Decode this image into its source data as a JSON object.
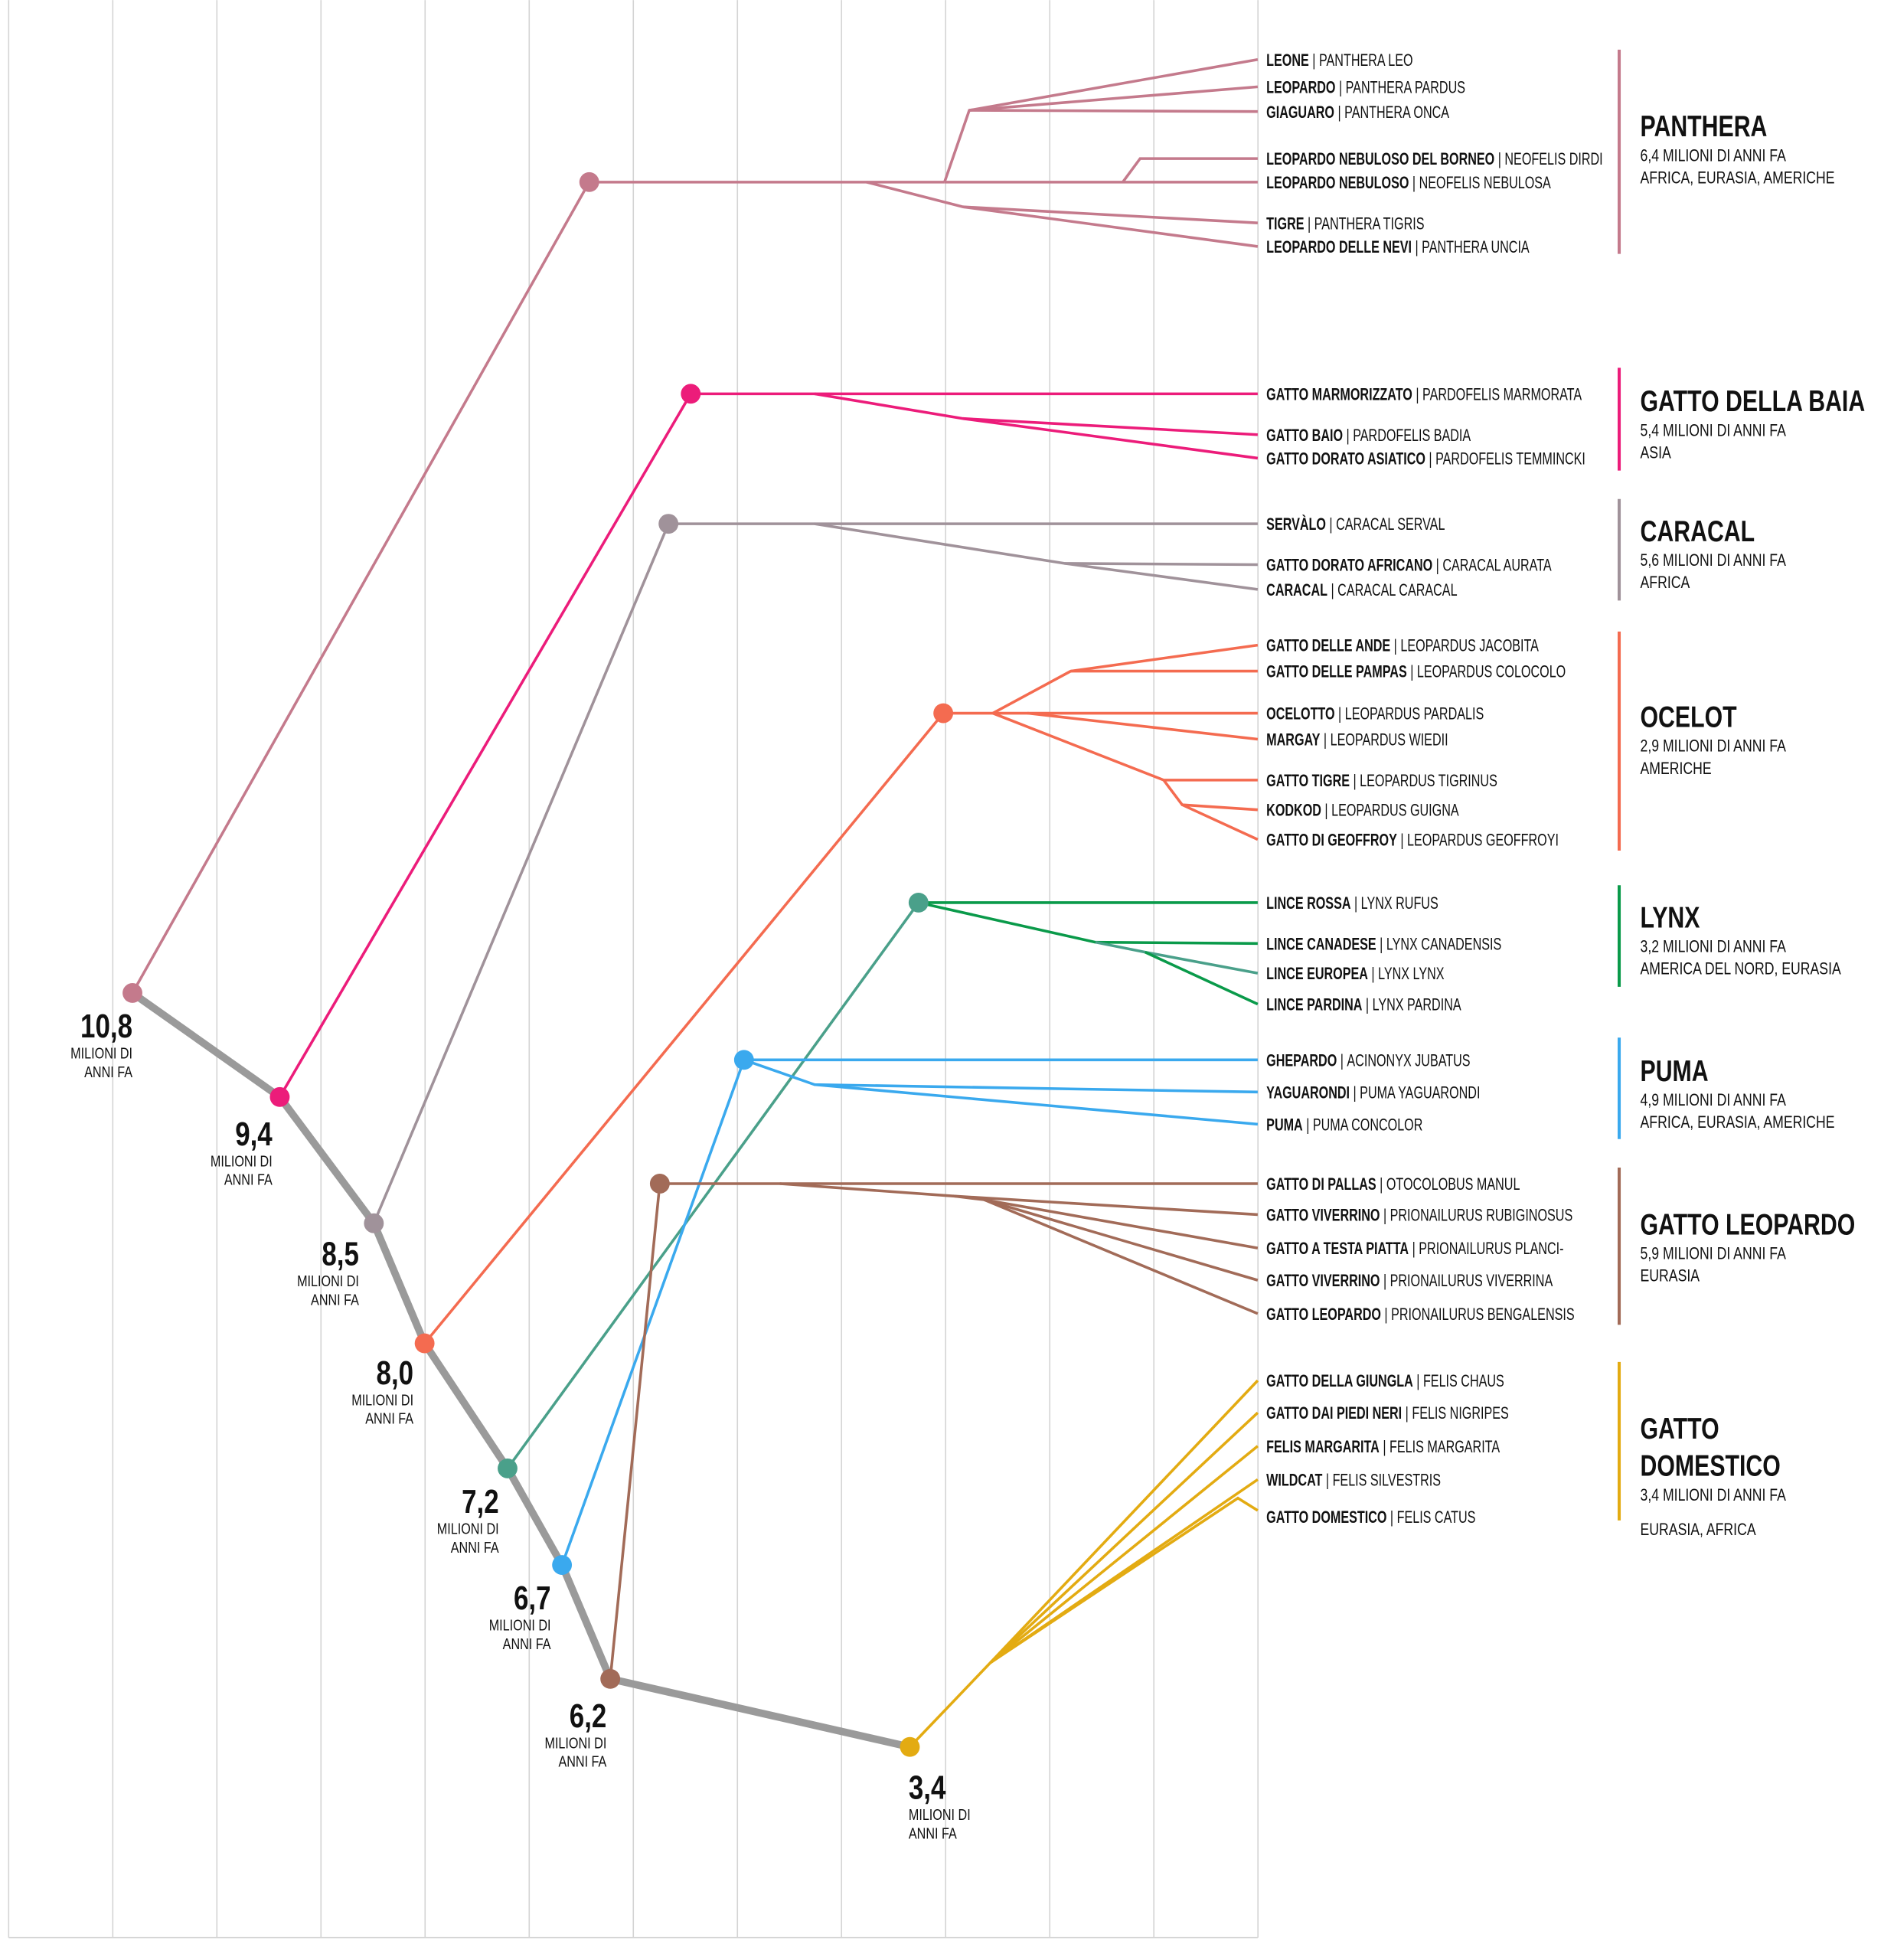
{
  "nodes": [
    {
      "age": "10,8",
      "caption": [
        "MILIONI DI",
        "ANNI FA"
      ],
      "color": "#c47a8c"
    },
    {
      "age": "9,4",
      "caption": [
        "MILIONI DI",
        "ANNI FA"
      ],
      "color": "#ec1c7a"
    },
    {
      "age": "8,5",
      "caption": [
        "MILIONI DI",
        "ANNI FA"
      ],
      "color": "#a0929a"
    },
    {
      "age": "8,0",
      "caption": [
        "MILIONI DI",
        "ANNI FA"
      ],
      "color": "#f46b50"
    },
    {
      "age": "7,2",
      "caption": [
        "MILIONI DI",
        "ANNI FA"
      ],
      "color": "#4aa08a"
    },
    {
      "age": "6,7",
      "caption": [
        "MILIONI DI",
        "ANNI FA"
      ],
      "color": "#3aa9ee"
    },
    {
      "age": "6,2",
      "caption": [
        "MILIONI DI",
        "ANNI FA"
      ],
      "color": "#a26b58"
    },
    {
      "age": "3,4",
      "caption": [
        "MILIONI DI",
        "ANNI FA"
      ],
      "color": "#e3ab12"
    }
  ],
  "backbone_color": "#9a9a9a",
  "clades": [
    {
      "title": [
        "PANTHERA"
      ],
      "age": "6,4 MILIONI DI ANNI FA",
      "region": "AFRICA, EURASIA, AMERICHE",
      "color": "#c47a8c",
      "species": [
        {
          "common": "LEONE",
          "scientific": "PANTHERA LEO"
        },
        {
          "common": "LEOPARDO",
          "scientific": "PANTHERA PARDUS"
        },
        {
          "common": "GIAGUARO",
          "scientific": "PANTHERA ONCA"
        },
        {
          "common": "LEOPARDO NEBULOSO DEL BORNEO",
          "scientific": "NEOFELIS DIRDI"
        },
        {
          "common": "LEOPARDO NEBULOSO",
          "scientific": "NEOFELIS NEBULOSA"
        },
        {
          "common": "TIGRE",
          "scientific": "PANTHERA TIGRIS"
        },
        {
          "common": "LEOPARDO DELLE NEVI",
          "scientific": "PANTHERA UNCIA"
        }
      ]
    },
    {
      "title": [
        "GATTO DELLA BAIA"
      ],
      "age": "5,4 MILIONI DI ANNI FA",
      "region": "ASIA",
      "color": "#ec1c7a",
      "species": [
        {
          "common": "GATTO MARMORIZZATO",
          "scientific": "PARDOFELIS MARMORATA"
        },
        {
          "common": "GATTO BAIO",
          "scientific": "PARDOFELIS BADIA"
        },
        {
          "common": "GATTO DORATO ASIATICO",
          "scientific": "PARDOFELIS TEMMINCKI"
        }
      ]
    },
    {
      "title": [
        "CARACAL"
      ],
      "age": "5,6 MILIONI DI ANNI FA",
      "region": "AFRICA",
      "color": "#a0929a",
      "species": [
        {
          "common": "SERVÀLO",
          "scientific": "CARACAL SERVAL"
        },
        {
          "common": "GATTO DORATO AFRICANO",
          "scientific": "CARACAL AURATA"
        },
        {
          "common": "CARACAL",
          "scientific": "CARACAL CARACAL"
        }
      ]
    },
    {
      "title": [
        "OCELOT"
      ],
      "age": "2,9 MILIONI DI ANNI FA",
      "region": "AMERICHE",
      "color": "#f46b50",
      "species": [
        {
          "common": "GATTO DELLE ANDE",
          "scientific": "LEOPARDUS JACOBITA"
        },
        {
          "common": "GATTO DELLE PAMPAS",
          "scientific": "LEOPARDUS COLOCOLO"
        },
        {
          "common": "OCELOTTO",
          "scientific": "LEOPARDUS PARDALIS"
        },
        {
          "common": "MARGAY",
          "scientific": "LEOPARDUS WIEDII"
        },
        {
          "common": "GATTO TIGRE",
          "scientific": "LEOPARDUS TIGRINUS"
        },
        {
          "common": "KODKOD",
          "scientific": "LEOPARDUS GUIGNA"
        },
        {
          "common": "GATTO DI GEOFFROY",
          "scientific": "LEOPARDUS GEOFFROYI"
        }
      ]
    },
    {
      "title": [
        "LYNX"
      ],
      "age": "3,2 MILIONI DI ANNI FA",
      "region": "AMERICA DEL NORD, EURASIA",
      "color": "#0a9a4a",
      "species": [
        {
          "common": "LINCE ROSSA",
          "scientific": "LYNX RUFUS"
        },
        {
          "common": "LINCE CANADESE",
          "scientific": "LYNX CANADENSIS"
        },
        {
          "common": "LINCE EUROPEA",
          "scientific": "LYNX LYNX"
        },
        {
          "common": "LINCE PARDINA",
          "scientific": "LYNX PARDINA"
        }
      ]
    },
    {
      "title": [
        "PUMA"
      ],
      "age": "4,9 MILIONI DI ANNI FA",
      "region": "AFRICA, EURASIA, AMERICHE",
      "color": "#3aa9ee",
      "species": [
        {
          "common": "GHEPARDO",
          "scientific": "ACINONYX JUBATUS"
        },
        {
          "common": "YAGUARONDI",
          "scientific": "PUMA YAGUARONDI"
        },
        {
          "common": "PUMA",
          "scientific": "PUMA CONCOLOR"
        }
      ]
    },
    {
      "title": [
        "GATTO LEOPARDO"
      ],
      "age": "5,9 MILIONI DI ANNI FA",
      "region": "EURASIA",
      "color": "#a26b58",
      "species": [
        {
          "common": "GATTO DI PALLAS",
          "scientific": "OTOCOLOBUS MANUL"
        },
        {
          "common": "GATTO VIVERRINO",
          "scientific": "PRIONAILURUS RUBIGINOSUS"
        },
        {
          "common": "GATTO A TESTA PIATTA",
          "scientific": "PRIONAILURUS PLANCI-"
        },
        {
          "common": "GATTO VIVERRINO",
          "scientific": "PRIONAILURUS VIVERRINA"
        },
        {
          "common": "GATTO LEOPARDO",
          "scientific": "PRIONAILURUS BENGALENSIS"
        }
      ]
    },
    {
      "title": [
        "GATTO",
        "DOMESTICO"
      ],
      "age": "3,4 MILIONI DI ANNI FA",
      "region": "EURASIA, AFRICA",
      "color": "#e3ab12",
      "species": [
        {
          "common": "GATTO DELLA GIUNGLA",
          "scientific": "FELIS CHAUS"
        },
        {
          "common": "GATTO DAI PIEDI NERI",
          "scientific": "FELIS NIGRIPES"
        },
        {
          "common": "FELIS MARGARITA",
          "scientific": "FELIS MARGARITA"
        },
        {
          "common": "WILDCAT",
          "scientific": "FELIS SILVESTRIS"
        },
        {
          "common": "GATTO DOMESTICO",
          "scientific": "FELIS CATUS"
        }
      ]
    }
  ]
}
